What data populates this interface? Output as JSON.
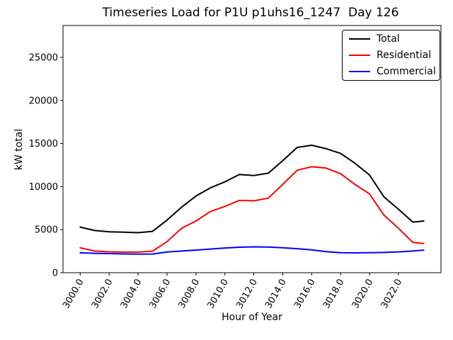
{
  "chart_data": {
    "type": "line",
    "title": "Timeseries Load for P1U p1uhs16_1247  Day 126",
    "xlabel": "Hour of Year",
    "ylabel": "kW total",
    "xlim": [
      2998.81,
      3024.94
    ],
    "ylim": [
      0,
      28700
    ],
    "grid": false,
    "legend_position": "upper right",
    "x_ticks": [
      3000,
      3002,
      3004,
      3006,
      3008,
      3010,
      3012,
      3014,
      3016,
      3018,
      3020,
      3022
    ],
    "x_tick_labels": [
      "3000.0",
      "3002.0",
      "3004.0",
      "3006.0",
      "3008.0",
      "3010.0",
      "3012.0",
      "3014.0",
      "3016.0",
      "3018.0",
      "3020.0",
      "3022.0"
    ],
    "y_ticks": [
      0,
      5000,
      10000,
      15000,
      20000,
      25000
    ],
    "y_tick_labels": [
      "0",
      "5000",
      "10000",
      "15000",
      "20000",
      "25000"
    ],
    "x": [
      3000,
      3001,
      3002,
      3003,
      3004,
      3005,
      3006,
      3007,
      3008,
      3009,
      3010,
      3011,
      3012,
      3013,
      3014,
      3015,
      3016,
      3017,
      3018,
      3019,
      3020,
      3021,
      3022,
      3023,
      3023.75
    ],
    "series": [
      {
        "name": "Total",
        "color": "#000000",
        "values": [
          5300,
          4900,
          4750,
          4700,
          4650,
          4800,
          6100,
          7600,
          8900,
          9850,
          10550,
          11400,
          11280,
          11550,
          13000,
          14550,
          14800,
          14400,
          13850,
          12700,
          11350,
          8800,
          7370,
          5870,
          6000
        ]
      },
      {
        "name": "Residential",
        "color": "#ff0000",
        "values": [
          2890,
          2520,
          2430,
          2390,
          2390,
          2500,
          3600,
          5150,
          6000,
          7100,
          7700,
          8400,
          8350,
          8650,
          10250,
          11900,
          12300,
          12150,
          11500,
          10250,
          9150,
          6680,
          5160,
          3510,
          3400
        ]
      },
      {
        "name": "Commercial",
        "color": "#0000ff",
        "values": [
          2300,
          2250,
          2220,
          2180,
          2160,
          2170,
          2400,
          2520,
          2620,
          2750,
          2870,
          2960,
          3000,
          2980,
          2900,
          2790,
          2650,
          2450,
          2320,
          2300,
          2320,
          2350,
          2420,
          2520,
          2620
        ]
      }
    ]
  }
}
